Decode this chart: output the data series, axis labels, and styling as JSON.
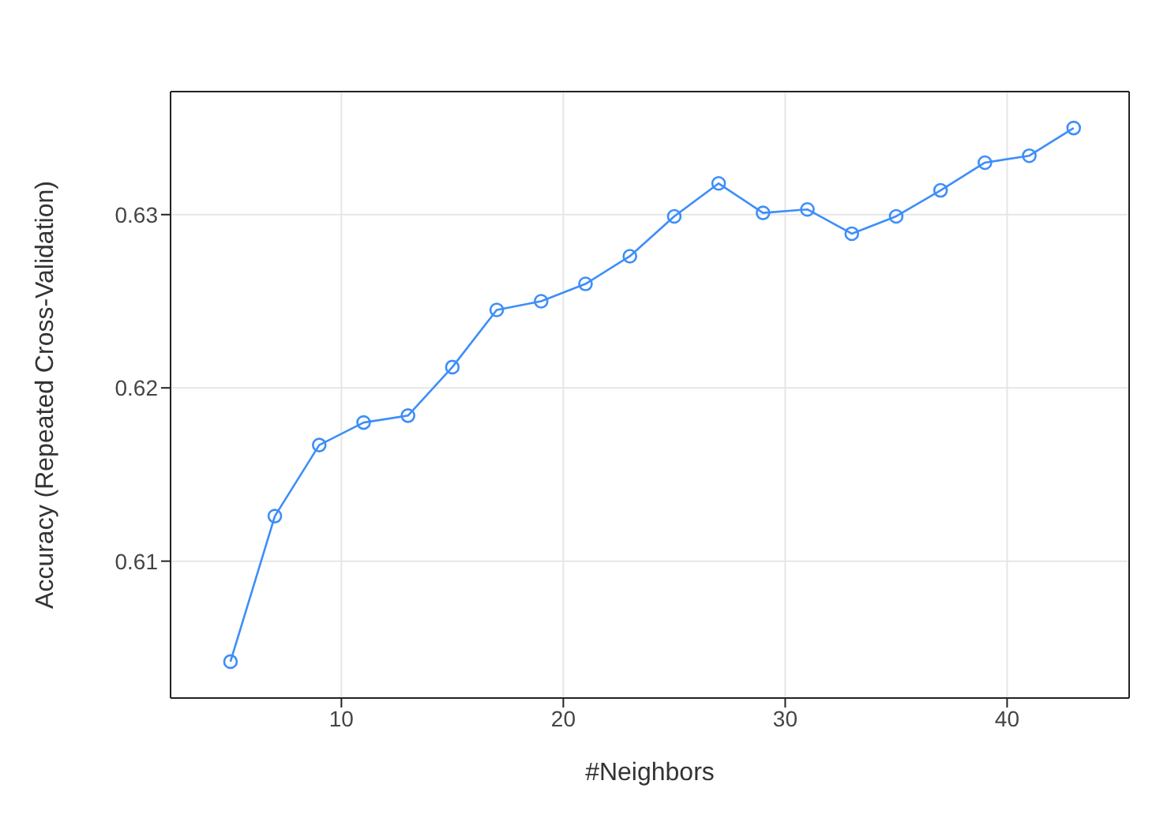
{
  "chart_data": {
    "type": "line",
    "xlabel": "#Neighbors",
    "ylabel": "Accuracy (Repeated Cross-Validation)",
    "x": [
      5,
      7,
      9,
      11,
      13,
      15,
      17,
      19,
      21,
      23,
      25,
      27,
      29,
      31,
      33,
      35,
      37,
      39,
      41,
      43
    ],
    "series": [
      {
        "color": "#3d8ef8",
        "values": [
          0.6042,
          0.6126,
          0.6167,
          0.618,
          0.6184,
          0.6212,
          0.6245,
          0.625,
          0.626,
          0.6276,
          0.6299,
          0.6318,
          0.6301,
          0.6303,
          0.6289,
          0.6299,
          0.6314,
          0.633,
          0.6334,
          0.635
        ]
      }
    ],
    "xlim": [
      2.3,
      45.5
    ],
    "xticks": [
      10,
      20,
      30,
      40
    ],
    "ylim": [
      0.6021,
      0.6371
    ],
    "yticks": [
      0.61,
      0.62,
      0.63
    ],
    "grid": true,
    "marker": "circle",
    "line_style": "solid"
  }
}
